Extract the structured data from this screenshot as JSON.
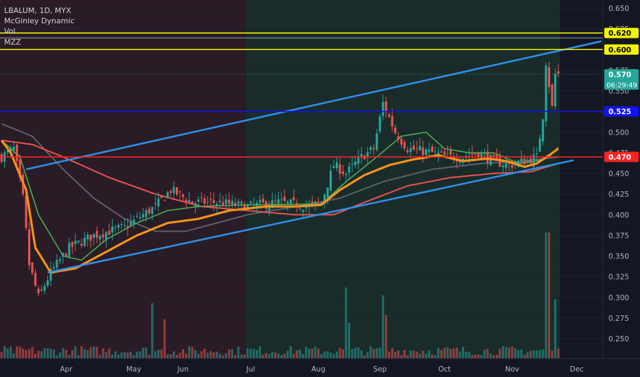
{
  "header": {
    "symbol_line": "LBALUM, 1D, MYX",
    "indicator_1": "McGinley Dynamic",
    "indicator_2": "Vol",
    "indicator_3": "MZZ"
  },
  "colors": {
    "background": "#131722",
    "red_zone": "#2a1c26",
    "green_zone": "#1a2c2a",
    "candle_up": "#26a69a",
    "candle_down": "#ef5350",
    "trendline": "#2f8fe8",
    "mcginley": "#f7931a",
    "ma_fast": "#4caf50",
    "ma_slow": "#ef5350",
    "ma_grey": "#5d606b",
    "level_yellow": "#f5f500",
    "level_blue": "#1010ff",
    "level_red": "#ff2222",
    "last_price": "#26a69a"
  },
  "chart_data": {
    "type": "candlestick",
    "symbol": "LBALUM",
    "interval": "1D",
    "exchange": "MYX",
    "price_axis": {
      "min": 0.23,
      "max": 0.66,
      "ticks": [
        "0.650",
        "0.625",
        "0.600",
        "0.575",
        "0.550",
        "0.525",
        "0.500",
        "0.475",
        "0.450",
        "0.425",
        "0.400",
        "0.375",
        "0.350",
        "0.325",
        "0.300",
        "0.275",
        "0.250"
      ]
    },
    "time_axis": {
      "labels": [
        "Apr",
        "May",
        "Jun",
        "Jul",
        "Aug",
        "Sep",
        "Oct",
        "Nov",
        "Dec"
      ],
      "label_bars": [
        21,
        43,
        59,
        81,
        103,
        123,
        144,
        166,
        187
      ],
      "total_bars": 182,
      "future_bars": 14
    },
    "zones": [
      {
        "from_bar": 0,
        "to_bar": 80,
        "tone": "red"
      },
      {
        "from_bar": 80,
        "to_bar": 182,
        "tone": "green"
      }
    ],
    "price_levels": [
      {
        "price": 0.62,
        "label": "0.620",
        "color": "#f5f500"
      },
      {
        "price": 0.6,
        "label": "0.600",
        "color": "#f5f500"
      },
      {
        "price": 0.57,
        "label": "0.570",
        "color": "#26a69a",
        "dotted": true,
        "countdown": "06:29:49"
      },
      {
        "price": 0.525,
        "label": "0.525",
        "color": "#1010ff"
      },
      {
        "price": 0.47,
        "label": "0.470",
        "color": "#ff2222"
      }
    ],
    "extra_lines": [
      {
        "price": 0.614,
        "color": "#d1d4dc"
      }
    ],
    "trendlines": [
      {
        "from": [
          8,
          0.455
        ],
        "to": [
          195,
          0.61
        ]
      },
      {
        "from": [
          15,
          0.33
        ],
        "to": [
          186,
          0.466
        ]
      }
    ],
    "candle_keys": [
      [
        0,
        0.47
      ],
      [
        4,
        0.48
      ],
      [
        7,
        0.42
      ],
      [
        9,
        0.34
      ],
      [
        12,
        0.3
      ],
      [
        16,
        0.33
      ],
      [
        22,
        0.36
      ],
      [
        30,
        0.375
      ],
      [
        40,
        0.385
      ],
      [
        50,
        0.41
      ],
      [
        55,
        0.43
      ],
      [
        62,
        0.415
      ],
      [
        70,
        0.415
      ],
      [
        80,
        0.41
      ],
      [
        90,
        0.415
      ],
      [
        100,
        0.41
      ],
      [
        104,
        0.415
      ],
      [
        108,
        0.46
      ],
      [
        112,
        0.45
      ],
      [
        117,
        0.47
      ],
      [
        121,
        0.48
      ],
      [
        124,
        0.535
      ],
      [
        128,
        0.5
      ],
      [
        132,
        0.48
      ],
      [
        140,
        0.475
      ],
      [
        145,
        0.47
      ],
      [
        150,
        0.47
      ],
      [
        155,
        0.475
      ],
      [
        160,
        0.465
      ],
      [
        165,
        0.46
      ],
      [
        170,
        0.465
      ],
      [
        174,
        0.47
      ],
      [
        176,
        0.52
      ],
      [
        177,
        0.585
      ],
      [
        179,
        0.53
      ],
      [
        180,
        0.57
      ]
    ],
    "mcginley_keys": [
      [
        0,
        0.49
      ],
      [
        3,
        0.475
      ],
      [
        8,
        0.43
      ],
      [
        11,
        0.36
      ],
      [
        16,
        0.33
      ],
      [
        24,
        0.335
      ],
      [
        34,
        0.355
      ],
      [
        44,
        0.375
      ],
      [
        54,
        0.39
      ],
      [
        64,
        0.395
      ],
      [
        74,
        0.405
      ],
      [
        86,
        0.41
      ],
      [
        96,
        0.41
      ],
      [
        104,
        0.412
      ],
      [
        110,
        0.43
      ],
      [
        118,
        0.448
      ],
      [
        126,
        0.46
      ],
      [
        134,
        0.467
      ],
      [
        142,
        0.472
      ],
      [
        150,
        0.465
      ],
      [
        158,
        0.468
      ],
      [
        164,
        0.465
      ],
      [
        170,
        0.458
      ],
      [
        174,
        0.462
      ],
      [
        178,
        0.472
      ],
      [
        181,
        0.48
      ]
    ],
    "ma_fast_keys": [
      [
        0,
        0.49
      ],
      [
        6,
        0.47
      ],
      [
        12,
        0.4
      ],
      [
        20,
        0.35
      ],
      [
        26,
        0.345
      ],
      [
        34,
        0.37
      ],
      [
        44,
        0.39
      ],
      [
        54,
        0.405
      ],
      [
        64,
        0.41
      ],
      [
        80,
        0.412
      ],
      [
        104,
        0.413
      ],
      [
        112,
        0.44
      ],
      [
        122,
        0.47
      ],
      [
        130,
        0.495
      ],
      [
        138,
        0.5
      ],
      [
        144,
        0.48
      ],
      [
        152,
        0.475
      ],
      [
        160,
        0.475
      ],
      [
        168,
        0.462
      ],
      [
        174,
        0.465
      ],
      [
        178,
        0.47
      ],
      [
        181,
        0.482
      ]
    ],
    "ma_slow_keys": [
      [
        0,
        0.49
      ],
      [
        10,
        0.485
      ],
      [
        20,
        0.47
      ],
      [
        35,
        0.445
      ],
      [
        50,
        0.425
      ],
      [
        65,
        0.41
      ],
      [
        80,
        0.405
      ],
      [
        95,
        0.4
      ],
      [
        108,
        0.4
      ],
      [
        118,
        0.415
      ],
      [
        132,
        0.435
      ],
      [
        146,
        0.445
      ],
      [
        160,
        0.45
      ],
      [
        172,
        0.452
      ],
      [
        181,
        0.462
      ]
    ],
    "ma_grey_keys": [
      [
        0,
        0.51
      ],
      [
        10,
        0.495
      ],
      [
        20,
        0.455
      ],
      [
        30,
        0.42
      ],
      [
        40,
        0.395
      ],
      [
        50,
        0.38
      ],
      [
        60,
        0.38
      ],
      [
        70,
        0.39
      ],
      [
        80,
        0.4
      ],
      [
        96,
        0.41
      ],
      [
        110,
        0.42
      ],
      [
        124,
        0.44
      ],
      [
        140,
        0.455
      ],
      [
        156,
        0.462
      ],
      [
        170,
        0.465
      ],
      [
        181,
        0.47
      ]
    ],
    "volume_spikes": [
      {
        "bar": 49,
        "value": 0.7
      },
      {
        "bar": 53,
        "value": 0.5
      },
      {
        "bar": 112,
        "value": 0.9
      },
      {
        "bar": 113,
        "value": 0.45
      },
      {
        "bar": 124,
        "value": 0.8
      },
      {
        "bar": 125,
        "value": 0.55
      },
      {
        "bar": 177,
        "value": 1.6
      },
      {
        "bar": 178,
        "value": 1.6
      },
      {
        "bar": 180,
        "value": 0.75
      }
    ]
  }
}
